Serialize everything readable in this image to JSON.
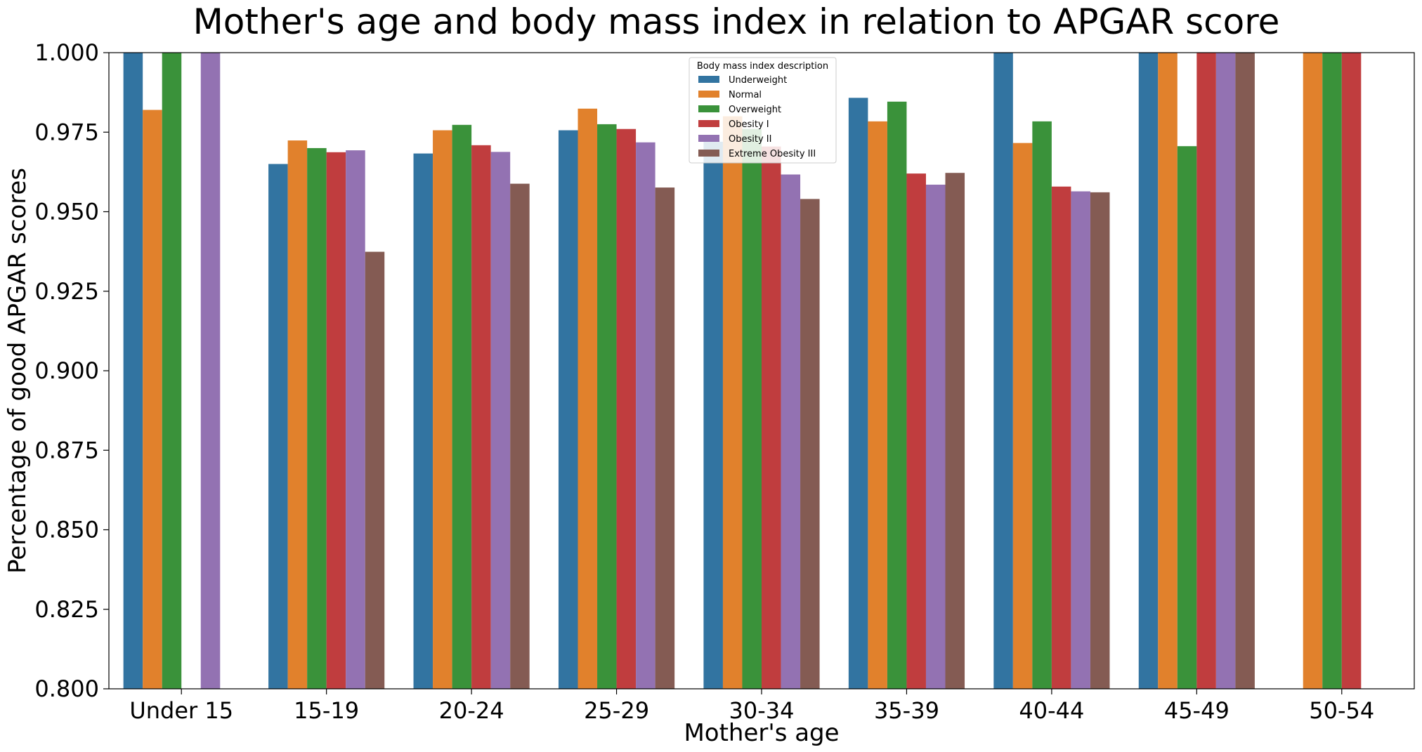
{
  "chart_data": {
    "type": "bar",
    "title": "Mother's age and body mass index in relation to APGAR score",
    "xlabel": "Mother's age",
    "ylabel": "Percentage of good APGAR scores",
    "ylim": [
      0.8,
      1.0
    ],
    "yticks": [
      "0.800",
      "0.825",
      "0.850",
      "0.875",
      "0.900",
      "0.925",
      "0.950",
      "0.975",
      "1.000"
    ],
    "categories": [
      "Under 15",
      "15-19",
      "20-24",
      "25-29",
      "30-34",
      "35-39",
      "40-44",
      "45-49",
      "50-54"
    ],
    "legend": {
      "title": "Body mass index description",
      "position": "top-center"
    },
    "grid": false,
    "series": [
      {
        "name": "Underweight",
        "color": "#3274a1",
        "values": [
          1.0,
          0.965,
          0.9683,
          0.9756,
          0.972,
          0.9858,
          1.0,
          1.0,
          null
        ]
      },
      {
        "name": "Normal",
        "color": "#e1812c",
        "values": [
          0.982,
          0.9724,
          0.9756,
          0.9824,
          0.98,
          0.9784,
          0.9716,
          1.0,
          1.0
        ]
      },
      {
        "name": "Overweight",
        "color": "#3a923a",
        "values": [
          1.0,
          0.97,
          0.9773,
          0.9775,
          0.976,
          0.9846,
          0.9784,
          0.9706,
          1.0
        ]
      },
      {
        "name": "Obesity I",
        "color": "#c03d3e",
        "values": [
          null,
          0.9687,
          0.9709,
          0.976,
          0.9705,
          0.962,
          0.9579,
          1.0,
          1.0
        ]
      },
      {
        "name": "Obesity II",
        "color": "#9372b2",
        "values": [
          1.0,
          0.9693,
          0.9688,
          0.9718,
          0.9617,
          0.9585,
          0.9564,
          1.0,
          null
        ]
      },
      {
        "name": "Extreme Obesity III",
        "color": "#845b53",
        "values": [
          null,
          0.9374,
          0.9588,
          0.9576,
          0.954,
          0.9622,
          0.9561,
          1.0,
          null
        ]
      }
    ]
  }
}
